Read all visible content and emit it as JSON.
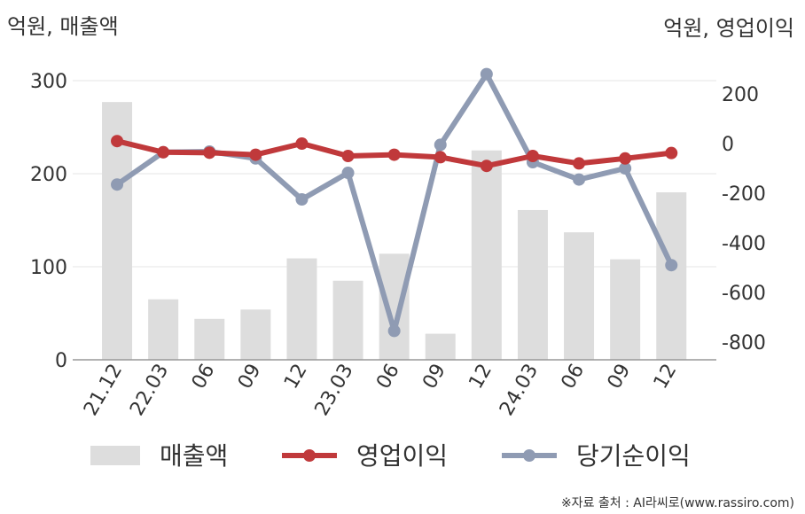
{
  "chart_data": {
    "type": "bar",
    "left_unit": "억원, 매출액",
    "right_unit": "억원, 영업이익",
    "categories": [
      "21.12",
      "22.03",
      "06",
      "09",
      "12",
      "23.03",
      "06",
      "09",
      "12",
      "24.03",
      "06",
      "09",
      "12"
    ],
    "left_axis": {
      "range": [
        0,
        300
      ],
      "ticks": [
        0,
        100,
        200,
        300
      ]
    },
    "right_axis": {
      "range": [
        -880,
        290
      ],
      "ticks": [
        200,
        0,
        -200,
        -400,
        -600,
        -800
      ]
    },
    "series": [
      {
        "name": "매출액",
        "type": "bar",
        "axis": "left",
        "color": "#dddddd",
        "values": [
          277,
          65,
          44,
          54,
          109,
          85,
          114,
          28,
          225,
          161,
          137,
          108,
          180
        ]
      },
      {
        "name": "영업이익",
        "type": "line",
        "axis": "right",
        "color": "#c0393b",
        "values": [
          10,
          -35,
          -37,
          -45,
          0,
          -50,
          -45,
          -55,
          -90,
          -50,
          -80,
          -60,
          -38
        ]
      },
      {
        "name": "당기순이익",
        "type": "line",
        "axis": "right",
        "color": "#8f9bb3",
        "values": [
          -165,
          -35,
          -32,
          -60,
          -225,
          -118,
          -755,
          -5,
          280,
          -75,
          -145,
          -100,
          -490
        ]
      }
    ],
    "grid": true,
    "legend_position": "bottom"
  },
  "source_text": "※자료 출처 : AI라씨로(www.rassiro.com)"
}
